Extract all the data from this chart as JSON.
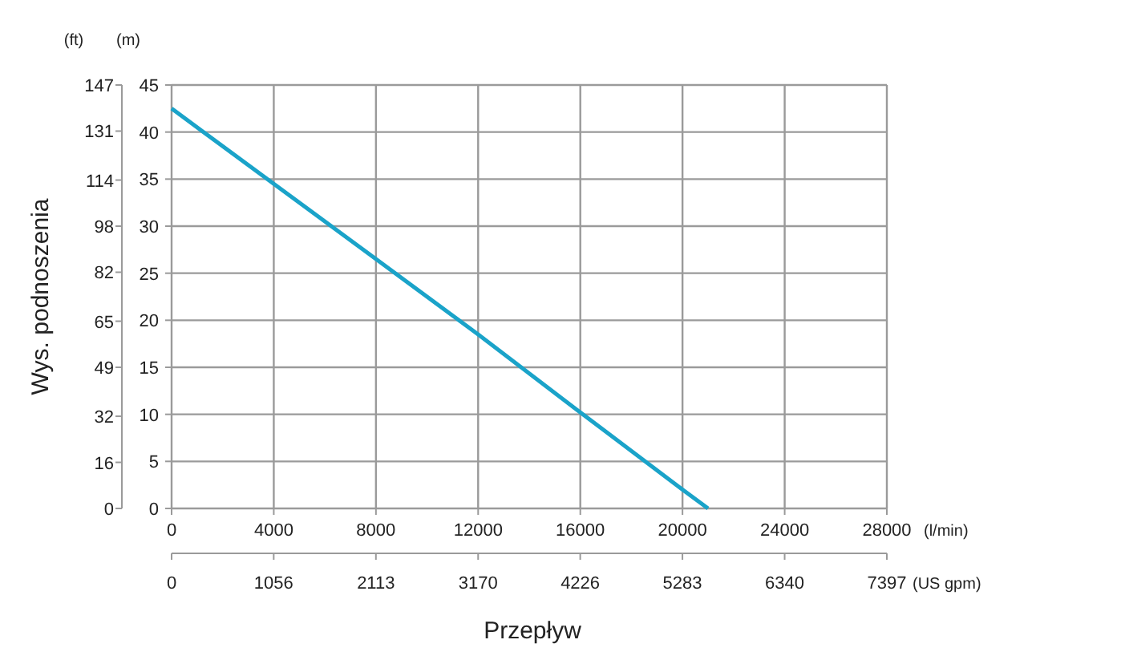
{
  "chart_data": {
    "type": "line",
    "xlabel": "Przepływ",
    "ylabel": "Wys. podnoszenia",
    "x2label": "(US gpm)",
    "annotations": [
      "(ft)",
      "(m)",
      "(l/min)"
    ],
    "x": [
      0,
      4000,
      8000,
      12000,
      16000,
      20000,
      21000
    ],
    "series": [
      {
        "color": "#1aa3c9",
        "axis": "y2",
        "values": [
          42.5,
          34.5,
          26.5,
          18.5,
          10.2,
          2,
          0
        ]
      }
    ],
    "xlim": [
      0,
      28000
    ],
    "xticks": [
      0,
      4000,
      8000,
      12000,
      16000,
      20000,
      24000,
      28000
    ],
    "ylim": [
      0,
      147
    ],
    "yticks": [
      0,
      16,
      32,
      49,
      65,
      82,
      98,
      114,
      131,
      147
    ],
    "y2lim": [
      0,
      45
    ],
    "y2ticks": [
      0,
      5,
      10,
      15,
      20,
      25,
      30,
      35,
      40,
      45
    ],
    "x2lim": [
      0,
      7397
    ],
    "x2ticks": [
      0,
      1056,
      2113,
      3170,
      4226,
      5283,
      6340,
      7397
    ],
    "grid": true,
    "marker": "none",
    "line_style": "solid"
  }
}
